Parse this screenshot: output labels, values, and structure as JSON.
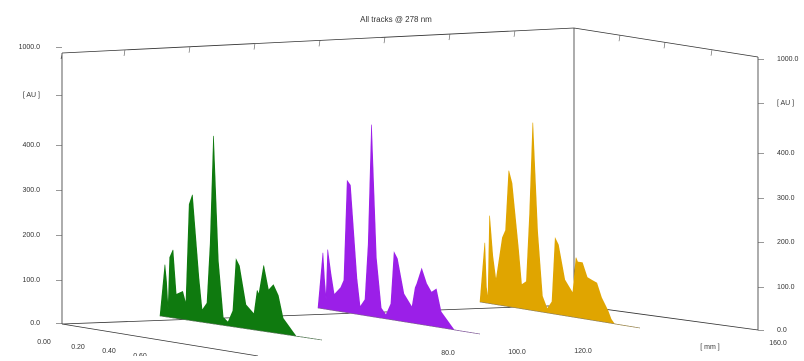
{
  "chart_data": {
    "type": "area",
    "title": "All tracks @ 278 nm",
    "ylabel": "[ AU ]",
    "xlabel": "[ mm ]",
    "y_ticks_left": [
      "0.0",
      "100.0",
      "200.0",
      "300.0",
      "400.0",
      "[ AU ]",
      "1000.0"
    ],
    "y_ticks_right": [
      "0.0",
      "100.0",
      "200.0",
      "300.0",
      "400.0",
      "[ AU ]",
      "1000.0"
    ],
    "z_ticks": [
      "0.00",
      "0.20",
      "0.40",
      "0.60"
    ],
    "x_ticks": [
      "80.0",
      "100.0",
      "120.0",
      "[ mm ]",
      "160.0"
    ],
    "ylim": [
      0,
      500
    ],
    "grid": false,
    "legend": "none",
    "series": [
      {
        "color": "#0f7a0f",
        "x": [
          0,
          3,
          4,
          5,
          6,
          8,
          10,
          14,
          16,
          18,
          20,
          24,
          26,
          29,
          31,
          33,
          36,
          39,
          42,
          45,
          47,
          49,
          53,
          58,
          60,
          61,
          64,
          67,
          70,
          73,
          76,
          80,
          82,
          84,
          88,
          92,
          100
        ],
        "values": [
          0,
          130,
          90,
          20,
          150,
          170,
          60,
          70,
          40,
          290,
          315,
          110,
          30,
          50,
          200,
          470,
          160,
          20,
          10,
          40,
          170,
          155,
          60,
          40,
          100,
          90,
          165,
          105,
          120,
          95,
          40,
          20,
          10,
          0,
          0,
          0,
          0
        ]
      },
      {
        "color": "#9b1fe8",
        "x": [
          0,
          3,
          4,
          5,
          6,
          8,
          10,
          14,
          16,
          18,
          20,
          24,
          26,
          29,
          31,
          33,
          36,
          39,
          42,
          45,
          47,
          49,
          53,
          58,
          60,
          61,
          64,
          67,
          70,
          73,
          76,
          80,
          82,
          84,
          88,
          92,
          100
        ],
        "values": [
          0,
          140,
          75,
          25,
          150,
          90,
          40,
          60,
          80,
          330,
          320,
          90,
          20,
          40,
          180,
          480,
          150,
          25,
          10,
          40,
          170,
          155,
          70,
          40,
          90,
          100,
          140,
          105,
          85,
          95,
          40,
          20,
          10,
          0,
          0,
          0,
          0
        ]
      },
      {
        "color": "#e0a500",
        "x": [
          0,
          3,
          4,
          5,
          6,
          8,
          10,
          14,
          16,
          18,
          20,
          24,
          26,
          29,
          31,
          33,
          36,
          39,
          42,
          45,
          47,
          49,
          53,
          58,
          60,
          61,
          64,
          67,
          70,
          73,
          76,
          80,
          82,
          84,
          88,
          92,
          100
        ],
        "values": [
          0,
          150,
          40,
          10,
          220,
          120,
          60,
          170,
          190,
          340,
          310,
          150,
          60,
          70,
          240,
          470,
          200,
          40,
          10,
          30,
          190,
          175,
          90,
          60,
          150,
          140,
          140,
          105,
          100,
          95,
          60,
          30,
          10,
          0,
          0,
          0,
          0
        ]
      }
    ]
  }
}
